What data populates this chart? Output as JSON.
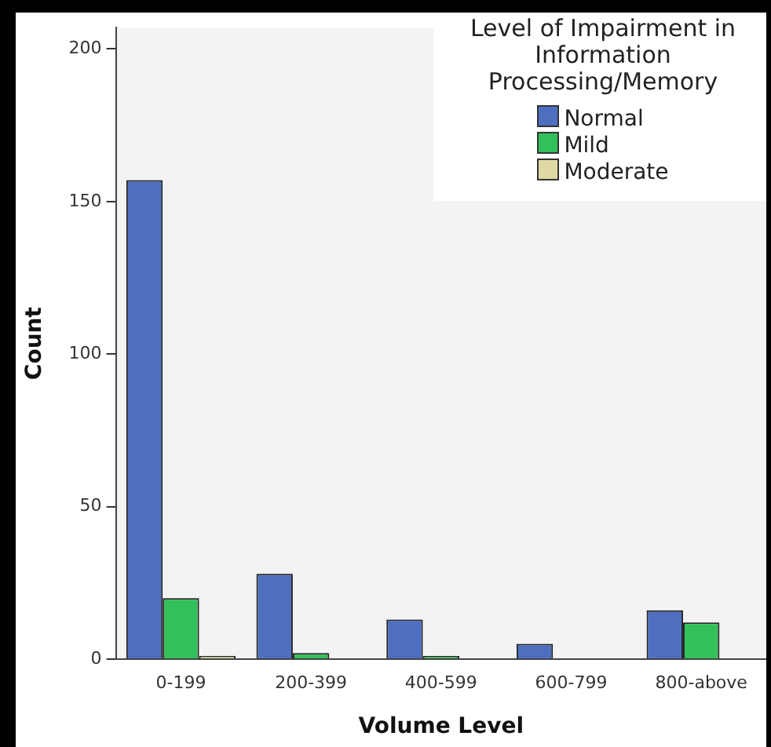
{
  "chart_data": {
    "type": "bar",
    "xlabel": "Volume Level",
    "ylabel": "Count",
    "legend_title": "Level of Impairment in Information Processing/Memory",
    "categories": [
      "0-199",
      "200-399",
      "400-599",
      "600-799",
      "800-above"
    ],
    "series": [
      {
        "name": "Normal",
        "color": "#4e6fbf",
        "values": [
          157,
          28,
          13,
          5,
          16
        ]
      },
      {
        "name": "Mild",
        "color": "#33c05a",
        "values": [
          20,
          2,
          1,
          0,
          12
        ]
      },
      {
        "name": "Moderate",
        "color": "#e0d9a3",
        "values": [
          1,
          0,
          0,
          0,
          0
        ]
      }
    ],
    "ylim": [
      0,
      207
    ],
    "yticks": [
      0,
      50,
      100,
      150,
      200
    ],
    "grid": false,
    "legend": "top right"
  }
}
